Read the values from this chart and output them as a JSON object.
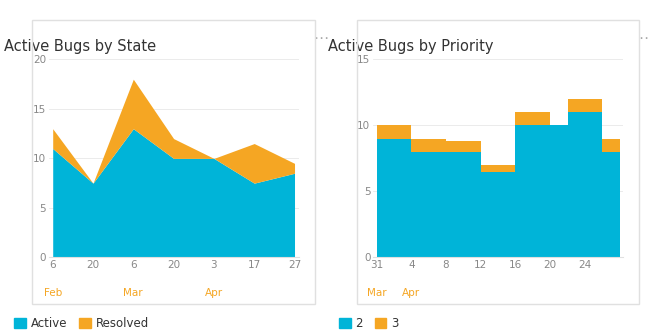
{
  "chart1": {
    "title": "Active Bugs by State",
    "x_labels": [
      "6",
      "20",
      "6",
      "20",
      "3",
      "17",
      "27"
    ],
    "x_positions": [
      0,
      1,
      2,
      3,
      4,
      5,
      6
    ],
    "active": [
      11,
      7.5,
      13,
      10,
      10,
      7.5,
      8.5
    ],
    "resolved_total": [
      13,
      7.5,
      18,
      12,
      10,
      11.5,
      9.5
    ],
    "month_labels": [
      {
        "text": "Feb",
        "x": 0
      },
      {
        "text": "Mar",
        "x": 2
      },
      {
        "text": "Apr",
        "x": 4
      }
    ],
    "ylim": [
      0,
      20
    ],
    "yticks": [
      0,
      5,
      10,
      15,
      20
    ],
    "color_active": "#00B4D8",
    "color_resolved": "#F5A623"
  },
  "chart2": {
    "title": "Active Bugs by Priority",
    "x_labels": [
      "31",
      "4",
      "8",
      "12",
      "16",
      "20",
      "24",
      ""
    ],
    "x_positions": [
      0,
      1,
      2,
      3,
      4,
      5,
      6,
      7
    ],
    "priority2": [
      9,
      9,
      8,
      8,
      6.5,
      10,
      10,
      11,
      11,
      11,
      8,
      8
    ],
    "priority3_total": [
      10,
      10,
      9,
      8.8,
      7,
      11,
      10,
      11.5,
      12,
      12,
      9,
      9
    ],
    "month_labels": [
      {
        "text": "Mar",
        "x": 0
      },
      {
        "text": "Apr",
        "x": 1
      }
    ],
    "ylim": [
      0,
      15
    ],
    "yticks": [
      0,
      5,
      10,
      15
    ],
    "color_p2": "#00B4D8",
    "color_p3": "#F5A623"
  },
  "bg_color": "#FFFFFF",
  "border_color": "#E0E0E0",
  "title_color": "#333333",
  "tick_color": "#888888",
  "month_label_color": "#F5A623",
  "dots_color": "#AAAAAA"
}
